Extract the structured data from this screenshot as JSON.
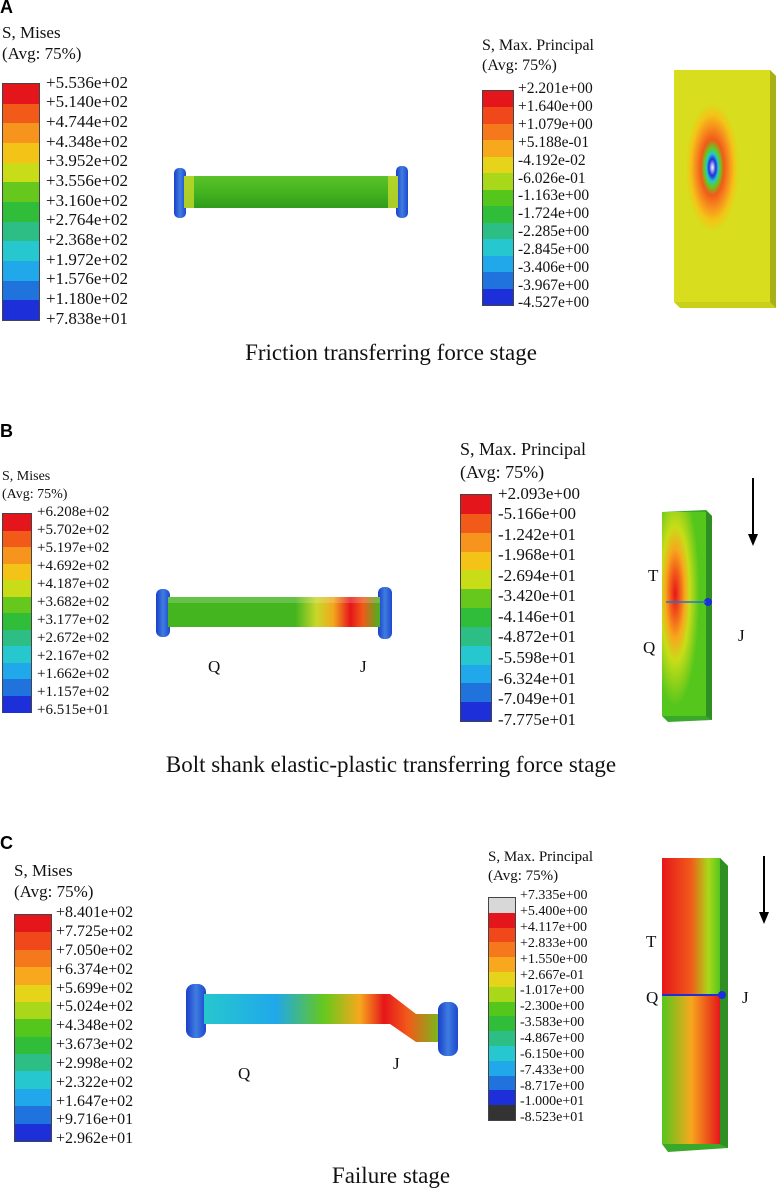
{
  "panels": [
    {
      "label": "A",
      "caption": "Friction transferring force stage",
      "mises": {
        "title": "S, Mises",
        "avg": "(Avg: 75%)",
        "values": [
          "+5.536e+02",
          "+5.140e+02",
          "+4.744e+02",
          "+4.348e+02",
          "+3.952e+02",
          "+3.556e+02",
          "+3.160e+02",
          "+2.764e+02",
          "+2.368e+02",
          "+1.972e+02",
          "+1.576e+02",
          "+1.180e+02",
          "+7.838e+01"
        ]
      },
      "principal": {
        "title": "S, Max. Principal",
        "avg": "(Avg: 75%)",
        "values": [
          "+2.201e+00",
          "+1.640e+00",
          "+1.079e+00",
          "+5.188e-01",
          "-4.192e-02",
          "-6.026e-01",
          "-1.163e+00",
          "-1.724e+00",
          "-2.285e+00",
          "-2.845e+00",
          "-3.406e+00",
          "-3.967e+00",
          "-4.527e+00"
        ]
      }
    },
    {
      "label": "B",
      "caption": "Bolt shank elastic-plastic transferring force stage",
      "mises": {
        "title": "S, Mises",
        "avg": "(Avg: 75%)",
        "values": [
          "+6.208e+02",
          "+5.702e+02",
          "+5.197e+02",
          "+4.692e+02",
          "+4.187e+02",
          "+3.682e+02",
          "+3.177e+02",
          "+2.672e+02",
          "+2.167e+02",
          "+1.662e+02",
          "+1.157e+02",
          "+6.515e+01"
        ]
      },
      "principal": {
        "title": "S, Max. Principal",
        "avg": "(Avg: 75%)",
        "values": [
          "+2.093e+00",
          "-5.166e+00",
          "-1.242e+01",
          "-1.968e+01",
          "-2.694e+01",
          "-3.420e+01",
          "-4.146e+01",
          "-4.872e+01",
          "-5.598e+01",
          "-6.324e+01",
          "-7.049e+01",
          "-7.775e+01"
        ]
      },
      "points": {
        "q": "Q",
        "j": "J",
        "t": "T"
      }
    },
    {
      "label": "C",
      "caption": "Failure stage",
      "mises": {
        "title": "S, Mises",
        "avg": "(Avg: 75%)",
        "values": [
          "+8.401e+02",
          "+7.725e+02",
          "+7.050e+02",
          "+6.374e+02",
          "+5.699e+02",
          "+5.024e+02",
          "+4.348e+02",
          "+3.673e+02",
          "+2.998e+02",
          "+2.322e+02",
          "+1.647e+02",
          "+9.716e+01",
          "+2.962e+01"
        ]
      },
      "principal": {
        "title": "S, Max. Principal",
        "avg": "(Avg: 75%)",
        "values": [
          "+7.335e+00",
          "+5.400e+00",
          "+4.117e+00",
          "+2.833e+00",
          "+1.550e+00",
          "+2.667e-01",
          "-1.017e+00",
          "-2.300e+00",
          "-3.583e+00",
          "-4.867e+00",
          "-6.150e+00",
          "-7.433e+00",
          "-8.717e+00",
          "-1.000e+01",
          "-8.523e+01"
        ]
      },
      "points": {
        "q": "Q",
        "j": "J",
        "t": "T"
      }
    }
  ],
  "colors": {
    "scale12": [
      "#e5161b",
      "#f25a1a",
      "#f7941d",
      "#f3c417",
      "#c8dd18",
      "#66c81c",
      "#2fbd3a",
      "#2dbe86",
      "#26c7cf",
      "#20a8ea",
      "#2072dc",
      "#1d2fd8"
    ],
    "scale13": [
      "#e5161b",
      "#f0481a",
      "#f6781c",
      "#f7a81d",
      "#e6d41a",
      "#a9d81a",
      "#55c61c",
      "#2fbd3a",
      "#2dbe86",
      "#26c7cf",
      "#20a8ea",
      "#2072dc",
      "#1d2fd8"
    ],
    "scale15": [
      "#d8d8d8",
      "#e5161b",
      "#f0481a",
      "#f6781c",
      "#f7a81d",
      "#e6d41a",
      "#a9d81a",
      "#55c61c",
      "#2fbd3a",
      "#2dbe86",
      "#26c7cf",
      "#20a8ea",
      "#2072dc",
      "#1d2fd8",
      "#333333"
    ]
  }
}
